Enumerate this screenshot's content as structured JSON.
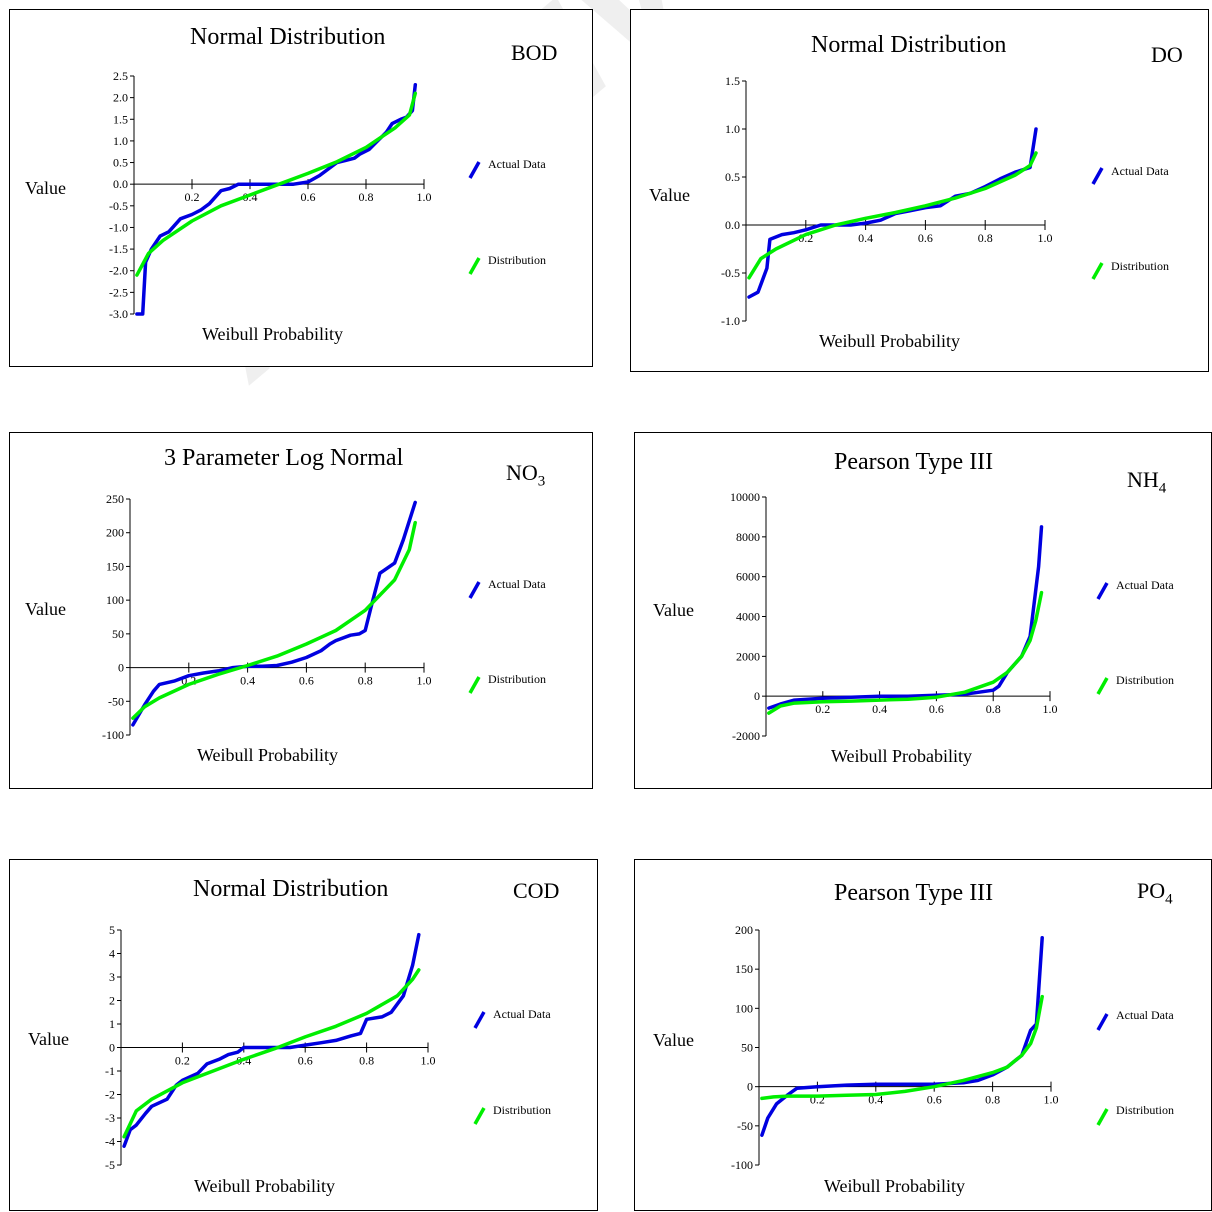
{
  "watermark": "Archive of SID",
  "colors": {
    "actual": "#0000e0",
    "distribution": "#00ee00"
  },
  "chart_data": [
    {
      "type": "line",
      "title": "Normal Distribution",
      "variable": "BOD",
      "subscript": "",
      "xlabel": "Weibull Probability",
      "ylabel": "Value",
      "xticks": [
        "0.2",
        "0.4",
        "0.6",
        "0.8",
        "1.0"
      ],
      "yticks": [
        "2.5",
        "2.0",
        "1.5",
        "1.0",
        "0.5",
        "0.0",
        "-0.5",
        "-1.0",
        "-1.5",
        "-2.0",
        "-2.5",
        "-3.0"
      ],
      "ylim": [
        -3.0,
        2.5
      ],
      "xlim": [
        0.0,
        1.0
      ],
      "legend": [
        "Actual Data",
        "Distribution"
      ],
      "legend_placement": "right",
      "series": [
        {
          "name": "Actual Data",
          "x": [
            0.01,
            0.03,
            0.04,
            0.06,
            0.09,
            0.12,
            0.16,
            0.2,
            0.23,
            0.26,
            0.28,
            0.3,
            0.33,
            0.36,
            0.38,
            0.42,
            0.48,
            0.55,
            0.6,
            0.64,
            0.67,
            0.7,
            0.73,
            0.76,
            0.78,
            0.81,
            0.84,
            0.87,
            0.89,
            0.92,
            0.94,
            0.96,
            0.97
          ],
          "y": [
            -3.0,
            -3.0,
            -1.8,
            -1.5,
            -1.2,
            -1.1,
            -0.8,
            -0.7,
            -0.6,
            -0.45,
            -0.3,
            -0.15,
            -0.1,
            0.0,
            0.0,
            0.0,
            0.0,
            0.0,
            0.05,
            0.2,
            0.35,
            0.5,
            0.55,
            0.6,
            0.7,
            0.8,
            1.0,
            1.2,
            1.4,
            1.5,
            1.55,
            1.7,
            2.3
          ]
        },
        {
          "name": "Distribution",
          "x": [
            0.01,
            0.05,
            0.1,
            0.2,
            0.3,
            0.4,
            0.5,
            0.6,
            0.7,
            0.8,
            0.9,
            0.95,
            0.97
          ],
          "y": [
            -2.1,
            -1.6,
            -1.3,
            -0.85,
            -0.5,
            -0.25,
            0.0,
            0.25,
            0.52,
            0.85,
            1.3,
            1.6,
            2.1
          ]
        }
      ]
    },
    {
      "type": "line",
      "title": "Normal Distribution",
      "variable": "DO",
      "subscript": "",
      "xlabel": "Weibull Probability",
      "ylabel": "Value",
      "xticks": [
        "0.2",
        "0.4",
        "0.6",
        "0.8",
        "1.0"
      ],
      "yticks": [
        "1.5",
        "1.0",
        "0.5",
        "0.0",
        "-0.5",
        "-1.0"
      ],
      "ylim": [
        -1.0,
        1.5
      ],
      "xlim": [
        0.0,
        1.0
      ],
      "legend": [
        "Actual Data",
        "Distribution"
      ],
      "legend_placement": "right",
      "series": [
        {
          "name": "Actual Data",
          "x": [
            0.01,
            0.04,
            0.07,
            0.08,
            0.12,
            0.16,
            0.2,
            0.25,
            0.3,
            0.35,
            0.4,
            0.45,
            0.5,
            0.55,
            0.6,
            0.65,
            0.7,
            0.75,
            0.8,
            0.85,
            0.9,
            0.95,
            0.97
          ],
          "y": [
            -0.75,
            -0.7,
            -0.45,
            -0.15,
            -0.1,
            -0.08,
            -0.05,
            0.0,
            0.0,
            0.0,
            0.02,
            0.05,
            0.12,
            0.15,
            0.18,
            0.2,
            0.3,
            0.33,
            0.4,
            0.48,
            0.55,
            0.6,
            1.0
          ]
        },
        {
          "name": "Distribution",
          "x": [
            0.01,
            0.05,
            0.1,
            0.2,
            0.3,
            0.4,
            0.5,
            0.6,
            0.7,
            0.8,
            0.9,
            0.95,
            0.97
          ],
          "y": [
            -0.55,
            -0.35,
            -0.25,
            -0.1,
            0.0,
            0.07,
            0.13,
            0.2,
            0.28,
            0.38,
            0.52,
            0.62,
            0.75
          ]
        }
      ]
    },
    {
      "type": "line",
      "title": "3 Parameter Log Normal",
      "variable": "NO",
      "subscript": "3",
      "xlabel": "Weibull Probability",
      "ylabel": "Value",
      "xticks": [
        "0.2",
        "0.4",
        "0.6",
        "0.8",
        "1.0"
      ],
      "yticks": [
        "250",
        "200",
        "150",
        "100",
        "50",
        "0",
        "-50",
        "-100"
      ],
      "ylim": [
        -100,
        250
      ],
      "xlim": [
        0.0,
        1.0
      ],
      "legend": [
        "Actual Data",
        "Distribution"
      ],
      "legend_placement": "right",
      "series": [
        {
          "name": "Actual Data",
          "x": [
            0.01,
            0.03,
            0.05,
            0.08,
            0.1,
            0.15,
            0.2,
            0.25,
            0.3,
            0.35,
            0.4,
            0.45,
            0.5,
            0.55,
            0.6,
            0.65,
            0.68,
            0.7,
            0.75,
            0.78,
            0.8,
            0.82,
            0.85,
            0.9,
            0.93,
            0.97
          ],
          "y": [
            -85,
            -70,
            -55,
            -35,
            -25,
            -20,
            -12,
            -8,
            -5,
            0,
            2,
            2,
            3,
            8,
            15,
            25,
            35,
            40,
            48,
            50,
            55,
            90,
            140,
            155,
            190,
            245
          ]
        },
        {
          "name": "Distribution",
          "x": [
            0.01,
            0.05,
            0.1,
            0.2,
            0.3,
            0.4,
            0.5,
            0.6,
            0.7,
            0.8,
            0.9,
            0.95,
            0.97
          ],
          "y": [
            -75,
            -58,
            -45,
            -25,
            -10,
            3,
            17,
            35,
            55,
            85,
            130,
            175,
            215
          ]
        }
      ]
    },
    {
      "type": "line",
      "title": "Pearson Type III",
      "variable": "NH",
      "subscript": "4",
      "xlabel": "Weibull Probability",
      "ylabel": "Value",
      "xticks": [
        "0.2",
        "0.4",
        "0.6",
        "0.8",
        "1.0"
      ],
      "yticks": [
        "10000",
        "8000",
        "6000",
        "4000",
        "2000",
        "0",
        "-2000"
      ],
      "ylim": [
        -2000,
        10000
      ],
      "xlim": [
        0.0,
        1.0
      ],
      "legend": [
        "Actual Data",
        "Distribution"
      ],
      "legend_placement": "right",
      "series": [
        {
          "name": "Actual Data",
          "x": [
            0.01,
            0.05,
            0.1,
            0.2,
            0.3,
            0.4,
            0.5,
            0.6,
            0.7,
            0.75,
            0.8,
            0.82,
            0.85,
            0.9,
            0.93,
            0.96,
            0.97
          ],
          "y": [
            -600,
            -400,
            -200,
            -100,
            -50,
            0,
            0,
            50,
            100,
            200,
            300,
            500,
            1200,
            2000,
            3000,
            6500,
            8500
          ]
        },
        {
          "name": "Distribution",
          "x": [
            0.01,
            0.05,
            0.1,
            0.2,
            0.3,
            0.4,
            0.5,
            0.6,
            0.7,
            0.8,
            0.85,
            0.9,
            0.93,
            0.95,
            0.97
          ],
          "y": [
            -850,
            -500,
            -350,
            -280,
            -250,
            -200,
            -150,
            -50,
            200,
            700,
            1200,
            2000,
            2800,
            3800,
            5200
          ]
        }
      ]
    },
    {
      "type": "line",
      "title": "Normal Distribution",
      "variable": "COD",
      "subscript": "",
      "xlabel": "Weibull Probability",
      "ylabel": "Value",
      "xticks": [
        "0.2",
        "0.4",
        "0.6",
        "0.8",
        "1.0"
      ],
      "yticks": [
        "5",
        "4",
        "3",
        "2",
        "1",
        "0",
        "-1",
        "-2",
        "-3",
        "-4",
        "-5"
      ],
      "ylim": [
        -5,
        5
      ],
      "xlim": [
        0.0,
        1.0
      ],
      "legend": [
        "Actual Data",
        "Distribution"
      ],
      "legend_placement": "right",
      "series": [
        {
          "name": "Actual Data",
          "x": [
            0.01,
            0.03,
            0.05,
            0.08,
            0.1,
            0.15,
            0.18,
            0.2,
            0.25,
            0.28,
            0.32,
            0.35,
            0.38,
            0.4,
            0.45,
            0.5,
            0.55,
            0.6,
            0.65,
            0.7,
            0.75,
            0.78,
            0.8,
            0.85,
            0.88,
            0.92,
            0.95,
            0.97
          ],
          "y": [
            -4.2,
            -3.5,
            -3.3,
            -2.8,
            -2.5,
            -2.2,
            -1.6,
            -1.4,
            -1.1,
            -0.7,
            -0.5,
            -0.3,
            -0.2,
            0.0,
            0.0,
            0.0,
            0.0,
            0.1,
            0.2,
            0.3,
            0.5,
            0.6,
            1.2,
            1.3,
            1.5,
            2.2,
            3.5,
            4.8
          ]
        },
        {
          "name": "Distribution",
          "x": [
            0.01,
            0.05,
            0.1,
            0.2,
            0.3,
            0.4,
            0.5,
            0.6,
            0.7,
            0.8,
            0.9,
            0.95,
            0.97
          ],
          "y": [
            -3.8,
            -2.7,
            -2.2,
            -1.5,
            -1.0,
            -0.5,
            -0.05,
            0.45,
            0.9,
            1.45,
            2.2,
            2.9,
            3.3
          ]
        }
      ]
    },
    {
      "type": "line",
      "title": "Pearson Type III",
      "variable": "PO",
      "subscript": "4",
      "xlabel": "Weibull Probability",
      "ylabel": "Value",
      "xticks": [
        "0.2",
        "0.4",
        "0.6",
        "0.8",
        "1.0"
      ],
      "yticks": [
        "200",
        "150",
        "100",
        "50",
        "0",
        "-50",
        "-100"
      ],
      "ylim": [
        -100,
        200
      ],
      "xlim": [
        0.0,
        1.0
      ],
      "legend": [
        "Actual Data",
        "Distribution"
      ],
      "legend_placement": "right",
      "series": [
        {
          "name": "Actual Data",
          "x": [
            0.01,
            0.03,
            0.06,
            0.1,
            0.13,
            0.2,
            0.3,
            0.4,
            0.5,
            0.6,
            0.65,
            0.7,
            0.75,
            0.8,
            0.85,
            0.9,
            0.93,
            0.95,
            0.97
          ],
          "y": [
            -62,
            -40,
            -22,
            -10,
            -2,
            0,
            2,
            3,
            3,
            3,
            4,
            5,
            8,
            15,
            25,
            40,
            72,
            80,
            190
          ]
        },
        {
          "name": "Distribution",
          "x": [
            0.01,
            0.05,
            0.1,
            0.2,
            0.3,
            0.4,
            0.5,
            0.6,
            0.7,
            0.8,
            0.85,
            0.9,
            0.93,
            0.95,
            0.97
          ],
          "y": [
            -15,
            -13,
            -12,
            -12,
            -11,
            -10,
            -6,
            0,
            8,
            18,
            25,
            40,
            55,
            75,
            115
          ]
        }
      ]
    }
  ]
}
